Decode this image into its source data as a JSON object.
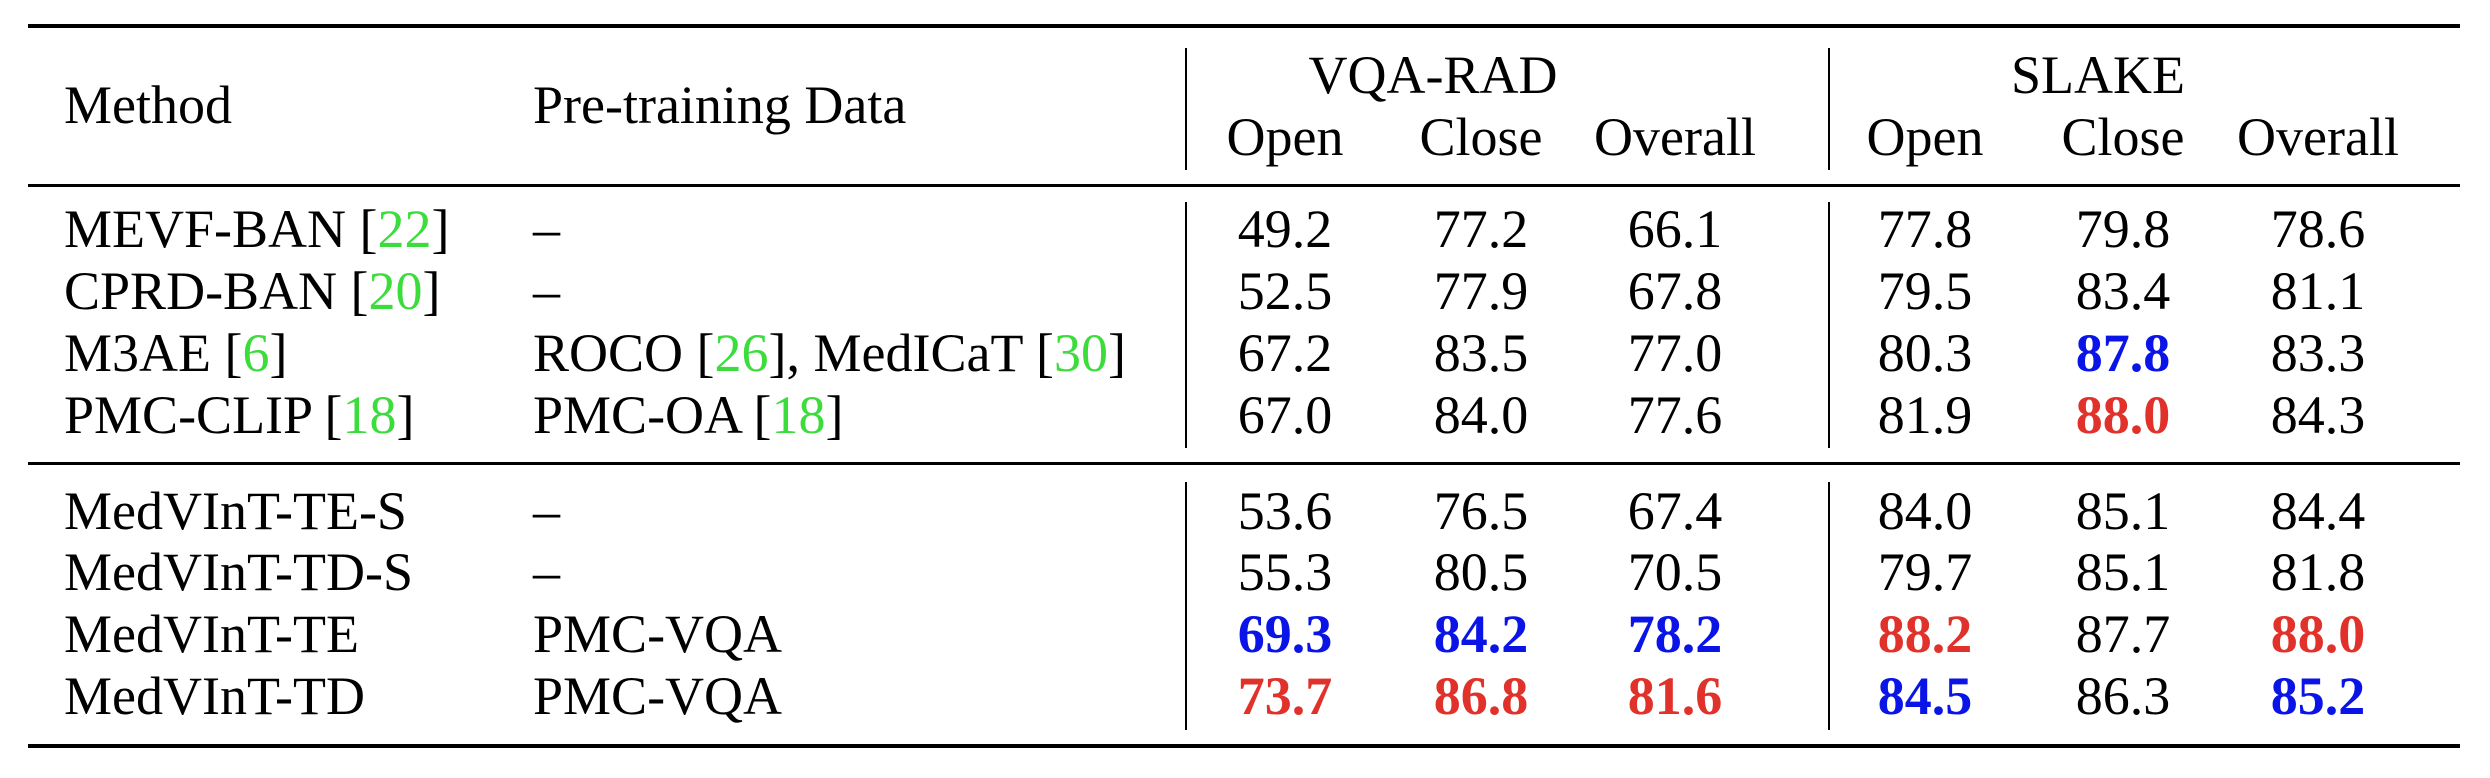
{
  "header": {
    "method": "Method",
    "pretraining": "Pre-training Data",
    "group_vqarad": "VQA-RAD",
    "group_slake": "SLAKE",
    "sub": [
      "Open",
      "Close",
      "Overall",
      "Open",
      "Close",
      "Overall"
    ]
  },
  "rows_top": [
    {
      "name": "MEVF-BAN [",
      "cite": "22",
      "close": "]",
      "pre": "–",
      "pre_parts": [],
      "vals": [
        "49.2",
        "77.2",
        "66.1",
        "77.8",
        "79.8",
        "78.6"
      ],
      "styles": [
        "",
        "",
        "",
        "",
        "",
        ""
      ]
    },
    {
      "name": "CPRD-BAN [",
      "cite": "20",
      "close": "]",
      "pre": "–",
      "pre_parts": [],
      "vals": [
        "52.5",
        "77.9",
        "67.8",
        "79.5",
        "83.4",
        "81.1"
      ],
      "styles": [
        "",
        "",
        "",
        "",
        "",
        ""
      ]
    },
    {
      "name": "M3AE [",
      "cite": "6",
      "close": "]",
      "pre": "",
      "pre_parts": [
        "ROCO [",
        "26",
        "], MedICaT [",
        "30",
        "]"
      ],
      "vals": [
        "67.2",
        "83.5",
        "77.0",
        "80.3",
        "87.8",
        "83.3"
      ],
      "styles": [
        "",
        "",
        "",
        "",
        "blue",
        ""
      ]
    },
    {
      "name": "PMC-CLIP [",
      "cite": "18",
      "close": "]",
      "pre": "",
      "pre_parts": [
        "PMC-OA [",
        "18",
        "]"
      ],
      "vals": [
        "67.0",
        "84.0",
        "77.6",
        "81.9",
        "88.0",
        "84.3"
      ],
      "styles": [
        "",
        "",
        "",
        "",
        "red",
        ""
      ]
    }
  ],
  "rows_bottom": [
    {
      "name": "MedVInT-TE-S",
      "pre": "–",
      "vals": [
        "53.6",
        "76.5",
        "67.4",
        "84.0",
        "85.1",
        "84.4"
      ],
      "styles": [
        "",
        "",
        "",
        "",
        "",
        ""
      ]
    },
    {
      "name": "MedVInT-TD-S",
      "pre": "–",
      "vals": [
        "55.3",
        "80.5",
        "70.5",
        "79.7",
        "85.1",
        "81.8"
      ],
      "styles": [
        "",
        "",
        "",
        "",
        "",
        ""
      ]
    },
    {
      "name": "MedVInT-TE",
      "pre": "PMC-VQA",
      "vals": [
        "69.3",
        "84.2",
        "78.2",
        "88.2",
        "87.7",
        "88.0"
      ],
      "styles": [
        "blue",
        "blue",
        "blue",
        "red",
        "",
        "red"
      ]
    },
    {
      "name": "MedVInT-TD",
      "pre": "PMC-VQA",
      "vals": [
        "73.7",
        "86.8",
        "81.6",
        "84.5",
        "86.3",
        "85.2"
      ],
      "styles": [
        "red",
        "red",
        "red",
        "blue",
        "",
        "blue"
      ]
    }
  ],
  "colors": {
    "citation": "#3ddc3d",
    "best": "#e0322b",
    "second": "#0a14e6"
  }
}
